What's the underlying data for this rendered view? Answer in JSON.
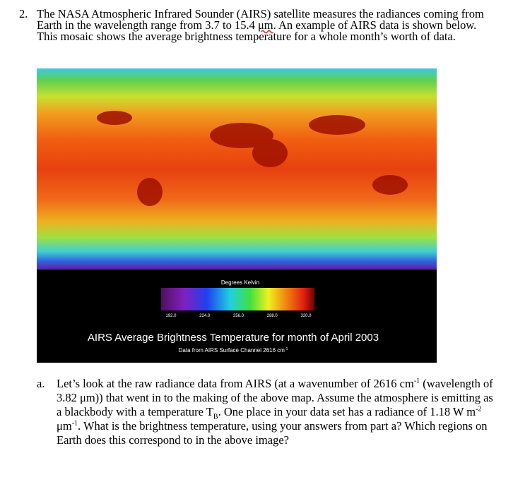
{
  "question": {
    "number": "2.",
    "text": [
      "The NASA Atmospheric Infrared Sounder (AIRS) satellite measures the radiances coming from Earth in the wavelength range from 3.7 to 15.4 ",
      "μm",
      ". An example of AIRS data is shown below. This mosaic shows the average brightness temperature for a whole month’s worth of data."
    ]
  },
  "figure": {
    "colorbar_title": "Degrees Kelvin",
    "colorbar_ticks": [
      "192.0",
      "224.0",
      "256.0",
      "288.0",
      "320.0"
    ],
    "title": "AIRS Average Brightness Temperature for month of April 2003",
    "subtitle": [
      "Data from AIRS Surface Channel 2616 cm",
      "-1"
    ]
  },
  "part_a": {
    "label": "a.",
    "text": [
      "Let’s look at the raw radiance data from AIRS (at a wavenumber of 2616 cm",
      "-1",
      " (wavelength of 3.82 μm)) that went in to the making of the above map. Assume the atmosphere is emitting as a blackbody with a temperature T",
      "B",
      ". One place in your data set has a radiance of 1.18 W m",
      "-2",
      " μm",
      "-1",
      ". What is the brightness temperature, using your answers from part a? Which regions on Earth does this correspond to in the above image?"
    ]
  }
}
